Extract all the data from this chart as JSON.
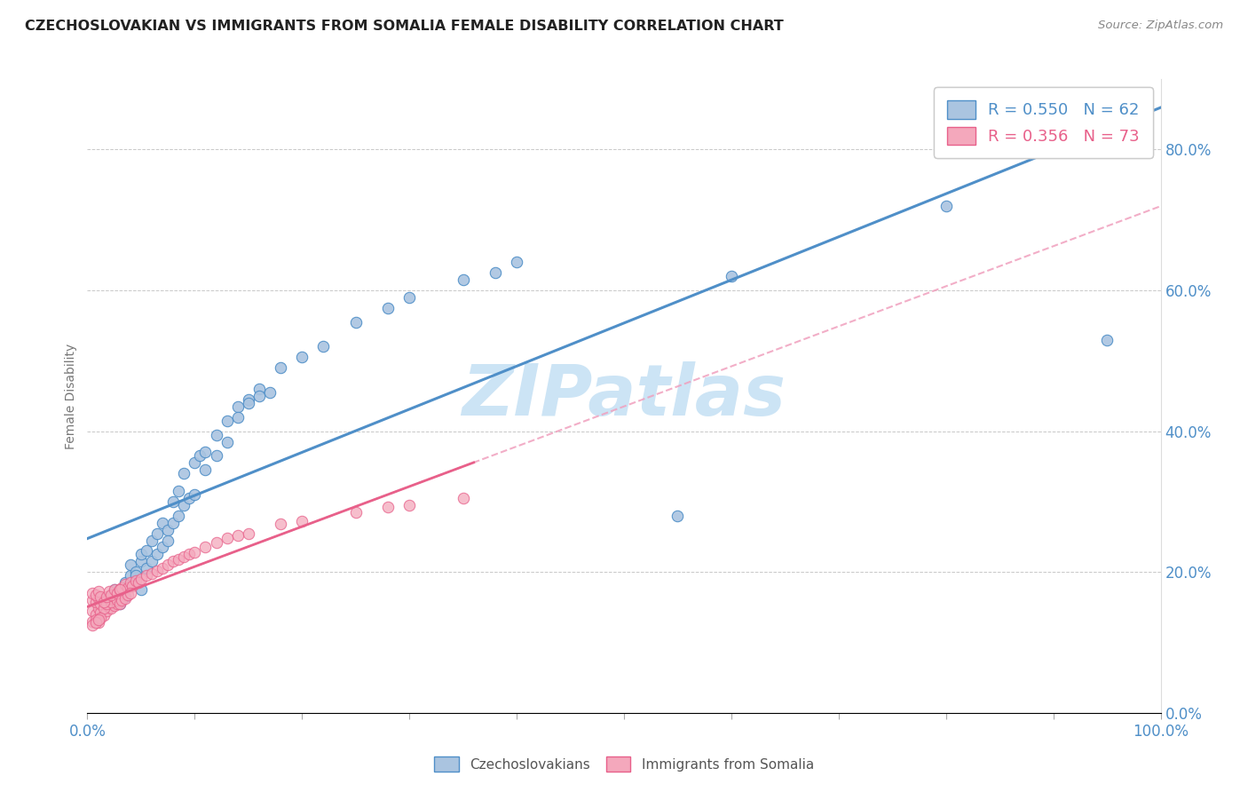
{
  "title": "CZECHOSLOVAKIAN VS IMMIGRANTS FROM SOMALIA FEMALE DISABILITY CORRELATION CHART",
  "source": "Source: ZipAtlas.com",
  "ylabel": "Female Disability",
  "xlim": [
    0,
    1.0
  ],
  "ylim": [
    0,
    0.9
  ],
  "blue_R": 0.55,
  "blue_N": 62,
  "pink_R": 0.356,
  "pink_N": 73,
  "blue_color": "#aac4e0",
  "pink_color": "#f4a8bc",
  "blue_line_color": "#4f8fc8",
  "pink_line_color": "#e8608a",
  "pink_dash_color": "#f0a0be",
  "watermark_color": "#cce4f5",
  "blue_scatter_x": [
    0.02,
    0.025,
    0.03,
    0.035,
    0.04,
    0.04,
    0.045,
    0.05,
    0.05,
    0.055,
    0.06,
    0.065,
    0.07,
    0.075,
    0.08,
    0.085,
    0.09,
    0.1,
    0.105,
    0.11,
    0.12,
    0.13,
    0.14,
    0.15,
    0.16,
    0.02,
    0.025,
    0.03,
    0.035,
    0.04,
    0.045,
    0.05,
    0.055,
    0.06,
    0.065,
    0.07,
    0.075,
    0.08,
    0.085,
    0.09,
    0.095,
    0.1,
    0.11,
    0.12,
    0.13,
    0.14,
    0.15,
    0.16,
    0.17,
    0.18,
    0.2,
    0.22,
    0.25,
    0.28,
    0.3,
    0.35,
    0.38,
    0.4,
    0.55,
    0.6,
    0.8,
    0.95
  ],
  "blue_scatter_y": [
    0.165,
    0.175,
    0.155,
    0.185,
    0.195,
    0.21,
    0.2,
    0.215,
    0.225,
    0.23,
    0.245,
    0.255,
    0.27,
    0.26,
    0.3,
    0.315,
    0.34,
    0.355,
    0.365,
    0.37,
    0.395,
    0.415,
    0.435,
    0.445,
    0.46,
    0.16,
    0.155,
    0.175,
    0.165,
    0.18,
    0.195,
    0.175,
    0.205,
    0.215,
    0.225,
    0.235,
    0.245,
    0.27,
    0.28,
    0.295,
    0.305,
    0.31,
    0.345,
    0.365,
    0.385,
    0.42,
    0.44,
    0.45,
    0.455,
    0.49,
    0.505,
    0.52,
    0.555,
    0.575,
    0.59,
    0.615,
    0.625,
    0.64,
    0.28,
    0.62,
    0.72,
    0.53
  ],
  "pink_scatter_x": [
    0.005,
    0.008,
    0.01,
    0.012,
    0.015,
    0.018,
    0.02,
    0.022,
    0.025,
    0.028,
    0.005,
    0.008,
    0.01,
    0.012,
    0.015,
    0.018,
    0.02,
    0.022,
    0.025,
    0.028,
    0.005,
    0.008,
    0.01,
    0.012,
    0.015,
    0.018,
    0.02,
    0.022,
    0.025,
    0.028,
    0.03,
    0.032,
    0.035,
    0.038,
    0.04,
    0.042,
    0.045,
    0.048,
    0.05,
    0.03,
    0.032,
    0.035,
    0.038,
    0.04,
    0.055,
    0.06,
    0.065,
    0.07,
    0.075,
    0.08,
    0.085,
    0.09,
    0.095,
    0.1,
    0.11,
    0.12,
    0.13,
    0.14,
    0.15,
    0.18,
    0.2,
    0.25,
    0.28,
    0.3,
    0.35,
    0.03,
    0.005,
    0.008,
    0.01,
    0.012,
    0.005,
    0.008,
    0.01
  ],
  "pink_scatter_y": [
    0.145,
    0.14,
    0.148,
    0.142,
    0.138,
    0.145,
    0.15,
    0.148,
    0.152,
    0.155,
    0.16,
    0.158,
    0.162,
    0.155,
    0.148,
    0.155,
    0.162,
    0.158,
    0.165,
    0.16,
    0.17,
    0.168,
    0.172,
    0.165,
    0.158,
    0.165,
    0.172,
    0.168,
    0.175,
    0.17,
    0.175,
    0.178,
    0.182,
    0.178,
    0.185,
    0.18,
    0.188,
    0.185,
    0.19,
    0.155,
    0.16,
    0.162,
    0.168,
    0.17,
    0.195,
    0.198,
    0.202,
    0.205,
    0.21,
    0.215,
    0.218,
    0.222,
    0.225,
    0.228,
    0.235,
    0.242,
    0.248,
    0.252,
    0.255,
    0.268,
    0.272,
    0.285,
    0.292,
    0.295,
    0.305,
    0.175,
    0.13,
    0.132,
    0.128,
    0.135,
    0.125,
    0.128,
    0.132
  ],
  "background_color": "#ffffff",
  "grid_color": "#c8c8c8"
}
